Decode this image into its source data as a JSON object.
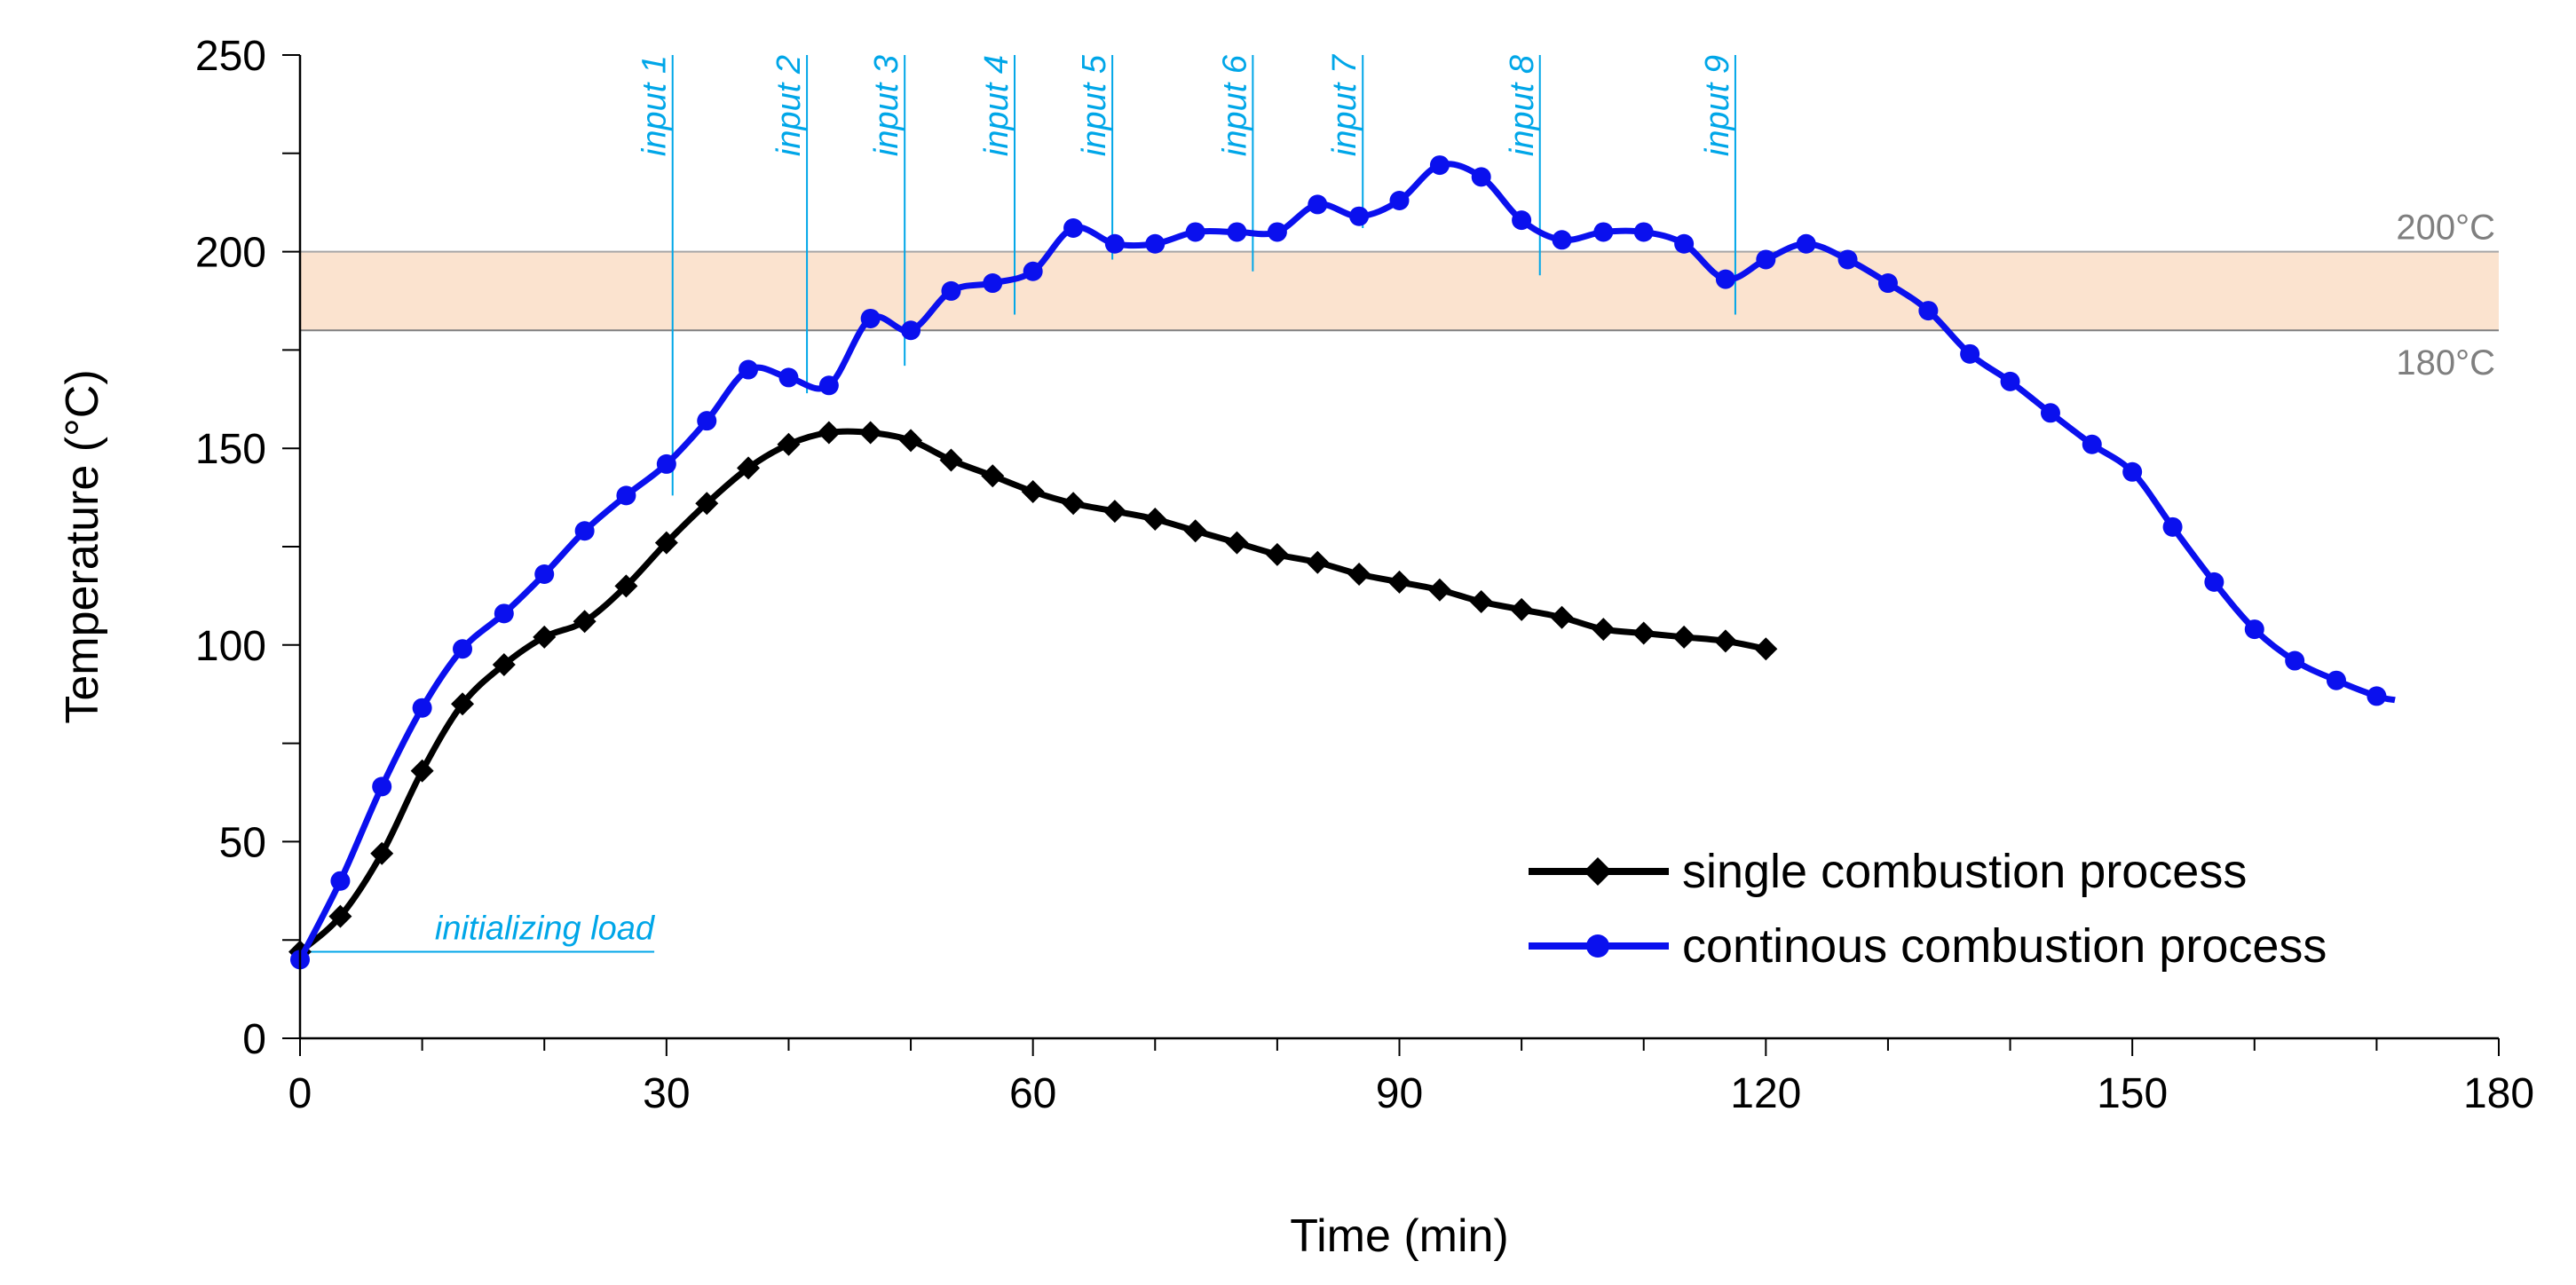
{
  "chart_data": {
    "type": "line",
    "xlabel": "Time (min)",
    "ylabel": "Temperature (°C)",
    "xlim": [
      0,
      180
    ],
    "ylim": [
      0,
      250
    ],
    "x_ticks": [
      0,
      30,
      60,
      90,
      120,
      150,
      180
    ],
    "y_ticks": [
      0,
      50,
      100,
      150,
      200,
      250
    ],
    "band": {
      "low": 180,
      "high": 200,
      "low_label": "180°C",
      "high_label": "200°C",
      "color": "#fbe3cf"
    },
    "series": [
      {
        "name": "single combustion process",
        "color": "#000000",
        "marker": "diamond",
        "x": [
          0,
          3.3,
          6.7,
          10,
          13.3,
          16.7,
          20,
          23.3,
          26.7,
          30,
          33.3,
          36.7,
          40,
          43.3,
          46.7,
          50,
          53.3,
          56.7,
          60,
          63.3,
          66.7,
          70,
          73.3,
          76.7,
          80,
          83.3,
          86.7,
          90,
          93.3,
          96.7,
          100,
          103.3,
          106.7,
          110,
          113.3,
          116.7,
          120
        ],
        "y": [
          22,
          31,
          47,
          68,
          85,
          95,
          102,
          106,
          115,
          126,
          136,
          145,
          151,
          154,
          154,
          152,
          147,
          143,
          139,
          136,
          134,
          132,
          129,
          126,
          123,
          121,
          118,
          116,
          114,
          111,
          109,
          107,
          104,
          103,
          102,
          101,
          99
        ]
      },
      {
        "name": "continous combustion process",
        "color": "#0a10ee",
        "marker": "circle",
        "x": [
          0,
          3.3,
          6.7,
          10,
          13.3,
          16.7,
          20,
          23.3,
          26.7,
          30,
          33.3,
          36.7,
          40,
          43.3,
          46.7,
          50,
          53.3,
          56.7,
          60,
          63.3,
          66.7,
          70,
          73.3,
          76.7,
          80,
          83.3,
          86.7,
          90,
          93.3,
          96.7,
          100,
          103.3,
          106.7,
          110,
          113.3,
          116.7,
          120,
          123.3,
          126.7,
          130,
          133.3,
          136.7,
          140,
          143.3,
          146.7,
          150,
          153.3,
          156.7,
          160,
          163.3,
          166.7,
          170
        ],
        "y": [
          20,
          40,
          64,
          84,
          99,
          108,
          118,
          129,
          138,
          146,
          157,
          170,
          168,
          166,
          183,
          180,
          190,
          192,
          195,
          206,
          202,
          202,
          205,
          205,
          205,
          212,
          209,
          213,
          222,
          219,
          208,
          203,
          205,
          205,
          202,
          193,
          198,
          202,
          198,
          192,
          185,
          174,
          167,
          159,
          151,
          144,
          130,
          116,
          104,
          96,
          91,
          87
        ],
        "trail": [
          171.5,
          86
        ]
      }
    ],
    "annotations": {
      "color": "#00a6e8",
      "inputs": [
        {
          "label": "input 1",
          "x": 30.5,
          "y_bottom": 138
        },
        {
          "label": "input 2",
          "x": 41.5,
          "y_bottom": 164
        },
        {
          "label": "input 3",
          "x": 49.5,
          "y_bottom": 171
        },
        {
          "label": "input 4",
          "x": 58.5,
          "y_bottom": 184
        },
        {
          "label": "input 5",
          "x": 66.5,
          "y_bottom": 198
        },
        {
          "label": "input 6",
          "x": 78,
          "y_bottom": 195
        },
        {
          "label": "input 7",
          "x": 87,
          "y_bottom": 206
        },
        {
          "label": "input 8",
          "x": 101.5,
          "y_bottom": 194
        },
        {
          "label": "input 9",
          "x": 117.5,
          "y_bottom": 184
        }
      ],
      "initial": {
        "label": "initializing load",
        "x_end": 29,
        "y": 22
      }
    },
    "legend_position": "bottom-right"
  }
}
